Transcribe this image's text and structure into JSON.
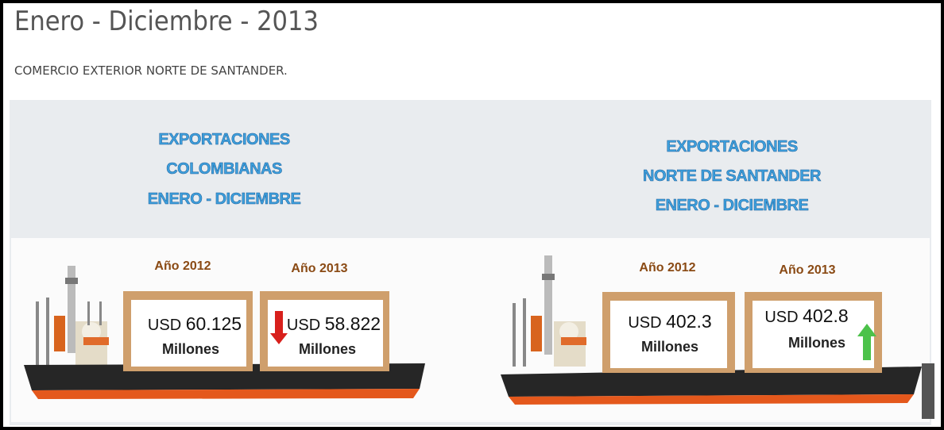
{
  "header": {
    "title": "Enero - Diciembre - 2013",
    "subtitle": "COMERCIO EXTERIOR NORTE DE SANTANDER."
  },
  "panels": [
    {
      "heading": [
        "EXPORTACIONES",
        "COLOMBIANAS",
        "ENERO - DICIEMBRE"
      ],
      "boxes": [
        {
          "year": "Año 2012",
          "currency": "USD",
          "value": "60.125",
          "unit": "Millones"
        },
        {
          "year": "Año 2013",
          "currency": "USD",
          "value": "58.822",
          "unit": "Millones"
        }
      ]
    },
    {
      "heading": [
        "EXPORTACIONES",
        "NORTE DE SANTANDER",
        "ENERO - DICIEMBRE"
      ],
      "boxes": [
        {
          "year": "Año 2012",
          "currency": "USD",
          "value": "402.3",
          "unit": "Millones"
        },
        {
          "year": "Año 2013",
          "currency": "USD",
          "value": "402.8",
          "unit": "Millones"
        }
      ]
    }
  ]
}
